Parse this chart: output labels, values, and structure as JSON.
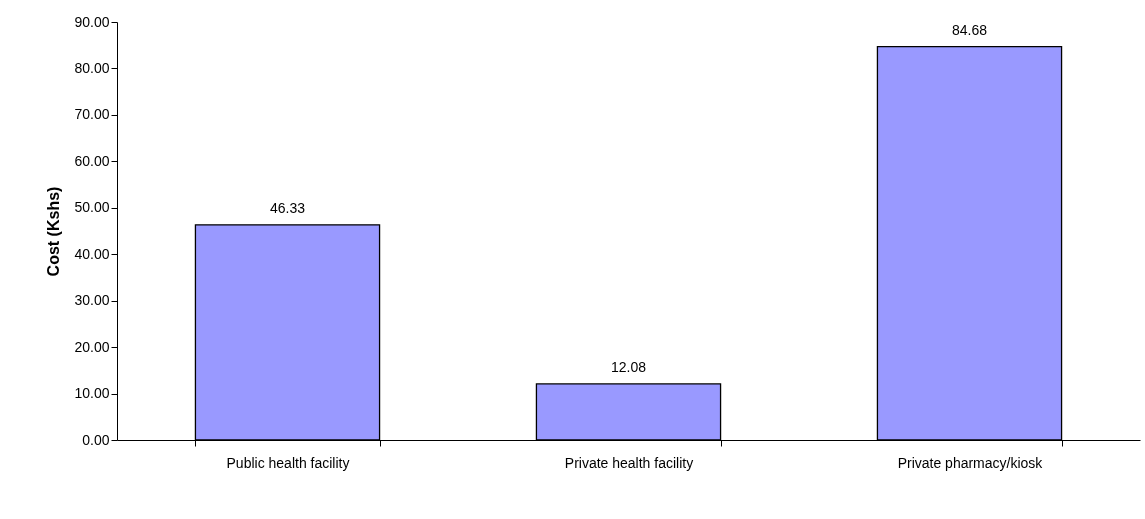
{
  "chart_data": {
    "type": "bar",
    "ylabel": "Cost (Kshs)",
    "categories": [
      "Public health facility",
      "Private health facility",
      "Private pharmacy/kiosk"
    ],
    "values": [
      46.33,
      12.08,
      84.68
    ],
    "color": "#9999ff",
    "ylim": [
      0,
      90
    ],
    "yticks": [
      {
        "value": 0,
        "label": "0.00"
      },
      {
        "value": 10,
        "label": "10.00"
      },
      {
        "value": 20,
        "label": "20.00"
      },
      {
        "value": 30,
        "label": "30.00"
      },
      {
        "value": 40,
        "label": "40.00"
      },
      {
        "value": 50,
        "label": "50.00"
      },
      {
        "value": 60,
        "label": "60.00"
      },
      {
        "value": 70,
        "label": "70.00"
      },
      {
        "value": 80,
        "label": "80.00"
      },
      {
        "value": 90,
        "label": "90.00"
      }
    ],
    "data_labels": true,
    "grid": false
  }
}
